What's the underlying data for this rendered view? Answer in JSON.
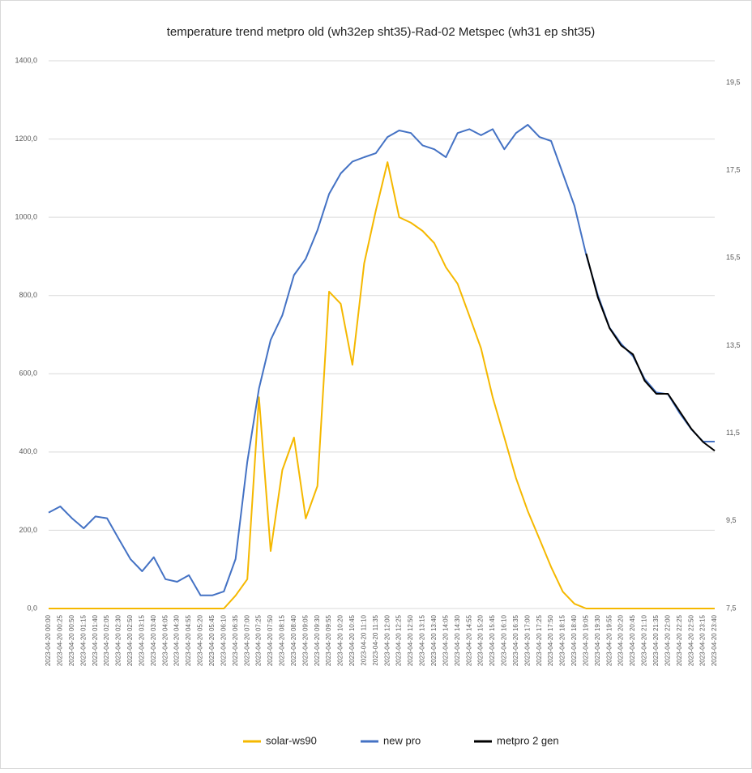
{
  "chart_data": {
    "type": "line",
    "title": "temperature trend metpro old (wh32ep sht35)-Rad-02 Metspec (wh31 ep sht35)",
    "categories": [
      "2023-04-20 00:00",
      "2023-04-20 00:25",
      "2023-04-20 00:50",
      "2023-04-20 01:15",
      "2023-04-20 01:40",
      "2023-04-20 02:05",
      "2023-04-20 02:30",
      "2023-04-20 02:50",
      "2023-04-20 03:15",
      "2023-04-20 03:40",
      "2023-04-20 04:05",
      "2023-04-20 04:30",
      "2023-04-20 04:55",
      "2023-04-20 05:20",
      "2023-04-20 05:45",
      "2023-04-20 06:10",
      "2023-04-20 06:35",
      "2023-04-20 07:00",
      "2023-04-20 07:25",
      "2023-04-20 07:50",
      "2023-04-20 08:15",
      "2023-04-20 08:40",
      "2023-04-20 09:05",
      "2023-04-20 09:30",
      "2023-04-20 09:55",
      "2023-04-20 10:20",
      "2023-04-20 10:45",
      "2023-04-20 11:10",
      "2023-04-20 11:35",
      "2023-04-20 12:00",
      "2023-04-20 12:25",
      "2023-04-20 12:50",
      "2023-04-20 13:15",
      "2023-04-20 13:40",
      "2023-04-20 14:05",
      "2023-04-20 14:30",
      "2023-04-20 14:55",
      "2023-04-20 15:20",
      "2023-04-20 15:45",
      "2023-04-20 16:10",
      "2023-04-20 16:35",
      "2023-04-20 17:00",
      "2023-04-20 17:25",
      "2023-04-20 17:50",
      "2023-04-20 18:15",
      "2023-04-20 18:40",
      "2023-04-20 19:05",
      "2023-04-20 19:30",
      "2023-04-20 19:55",
      "2023-04-20 20:20",
      "2023-04-20 20:45",
      "2023-04-20 21:10",
      "2023-04-20 21:35",
      "2023-04-20 22:00",
      "2023-04-20 22:25",
      "2023-04-20 22:50",
      "2023-04-20 23:15",
      "2023-04-20 23:40"
    ],
    "series": [
      {
        "name": "solar-ws90",
        "color": "#f5b800",
        "values": [
          0,
          0,
          0,
          0,
          0,
          0,
          0,
          0,
          0,
          0,
          0,
          0,
          0,
          0,
          0,
          0,
          33,
          75,
          540,
          147,
          354,
          437,
          230,
          313,
          810,
          779,
          623,
          882,
          1017,
          1141,
          1000,
          986,
          965,
          934,
          872,
          830,
          748,
          665,
          540,
          437,
          333,
          249,
          178,
          106,
          43,
          12,
          0,
          0,
          0,
          0,
          0,
          0,
          0,
          0,
          0,
          0,
          0,
          0
        ]
      },
      {
        "name": "new pro",
        "color": "#4472c4",
        "axis": "y2",
        "values": [
          9.69,
          9.83,
          9.56,
          9.33,
          9.6,
          9.56,
          9.09,
          8.63,
          8.35,
          8.67,
          8.17,
          8.11,
          8.26,
          7.8,
          7.8,
          7.89,
          8.63,
          10.85,
          12.52,
          13.63,
          14.19,
          15.11,
          15.48,
          16.13,
          16.96,
          17.43,
          17.7,
          17.8,
          17.89,
          18.26,
          18.41,
          18.35,
          18.07,
          17.98,
          17.8,
          18.35,
          18.44,
          18.3,
          18.44,
          17.98,
          18.35,
          18.54,
          18.26,
          18.17,
          17.43,
          16.69,
          15.57,
          14.65,
          13.91,
          13.54,
          13.26,
          12.74,
          12.43,
          12.39,
          11.96,
          11.59,
          11.31,
          11.31
        ]
      },
      {
        "name": "metpro 2 gen",
        "color": "#000000",
        "axis": "y2",
        "values": [
          null,
          null,
          null,
          null,
          null,
          null,
          null,
          null,
          null,
          null,
          null,
          null,
          null,
          null,
          null,
          null,
          null,
          null,
          null,
          null,
          null,
          null,
          null,
          null,
          null,
          null,
          null,
          null,
          null,
          null,
          null,
          null,
          null,
          null,
          null,
          null,
          null,
          null,
          null,
          null,
          null,
          null,
          null,
          null,
          null,
          null,
          15.6,
          14.6,
          13.9,
          13.5,
          13.3,
          12.7,
          12.4,
          12.4,
          12.0,
          11.6,
          11.3,
          11.1
        ]
      }
    ],
    "ylim": [
      0,
      1400
    ],
    "yticks": [
      {
        "value": 0,
        "label": "0,0"
      },
      {
        "value": 200,
        "label": "200,0"
      },
      {
        "value": 400,
        "label": "400,0"
      },
      {
        "value": 600,
        "label": "600,0"
      },
      {
        "value": 800,
        "label": "800,0"
      },
      {
        "value": 1000,
        "label": "1000,0"
      },
      {
        "value": 1200,
        "label": "1200,0"
      },
      {
        "value": 1400,
        "label": "1400,0"
      }
    ],
    "y2lim": [
      7.5,
      20
    ],
    "y2ticks": [
      {
        "value": 7.5,
        "label": "7,5"
      },
      {
        "value": 9.5,
        "label": "9,5"
      },
      {
        "value": 11.5,
        "label": "11,5"
      },
      {
        "value": 13.5,
        "label": "13,5"
      },
      {
        "value": 15.5,
        "label": "15,5"
      },
      {
        "value": 17.5,
        "label": "17,5"
      },
      {
        "value": 19.5,
        "label": "19,5"
      }
    ],
    "grid": true,
    "legend": "bottom"
  }
}
